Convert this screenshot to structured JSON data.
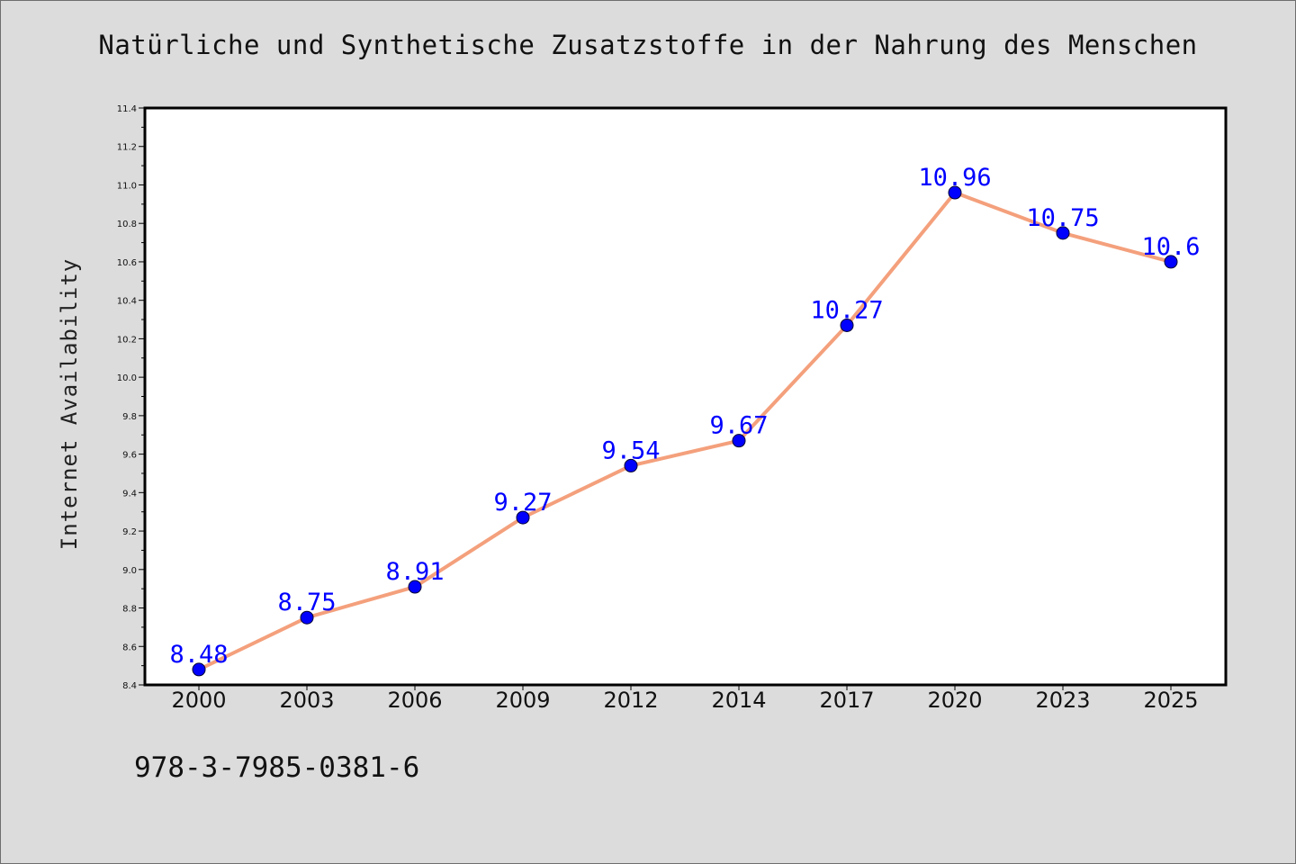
{
  "chart_data": {
    "type": "line",
    "title": "Natürliche und Synthetische Zusatzstoffe in der Nahrung des Menschen",
    "xlabel": "",
    "ylabel": "Internet Availability",
    "categories": [
      "2000",
      "2003",
      "2006",
      "2009",
      "2012",
      "2014",
      "2017",
      "2020",
      "2023",
      "2025"
    ],
    "series": [
      {
        "values": [
          8.48,
          8.75,
          8.91,
          9.27,
          9.54,
          9.67,
          10.27,
          10.96,
          10.75,
          10.6
        ],
        "data_labels": [
          "8.48",
          "8.75",
          "8.91",
          "9.27",
          "9.54",
          "9.67",
          "10.27",
          "10.96",
          "10.75",
          "10.6"
        ],
        "line_color": "#f4a07c",
        "marker_color": "#0000ff"
      }
    ],
    "ylim": [
      8.4,
      11.4
    ],
    "yticks": [
      "8.4",
      "8.6",
      "8.8",
      "9.0",
      "9.2",
      "9.4",
      "9.6",
      "9.8",
      "10.0",
      "10.2",
      "10.4",
      "10.6",
      "10.8",
      "11.0",
      "11.2",
      "11.4"
    ],
    "grid": false,
    "legend": "none"
  },
  "footer": {
    "isbn": "978-3-7985-0381-6"
  }
}
